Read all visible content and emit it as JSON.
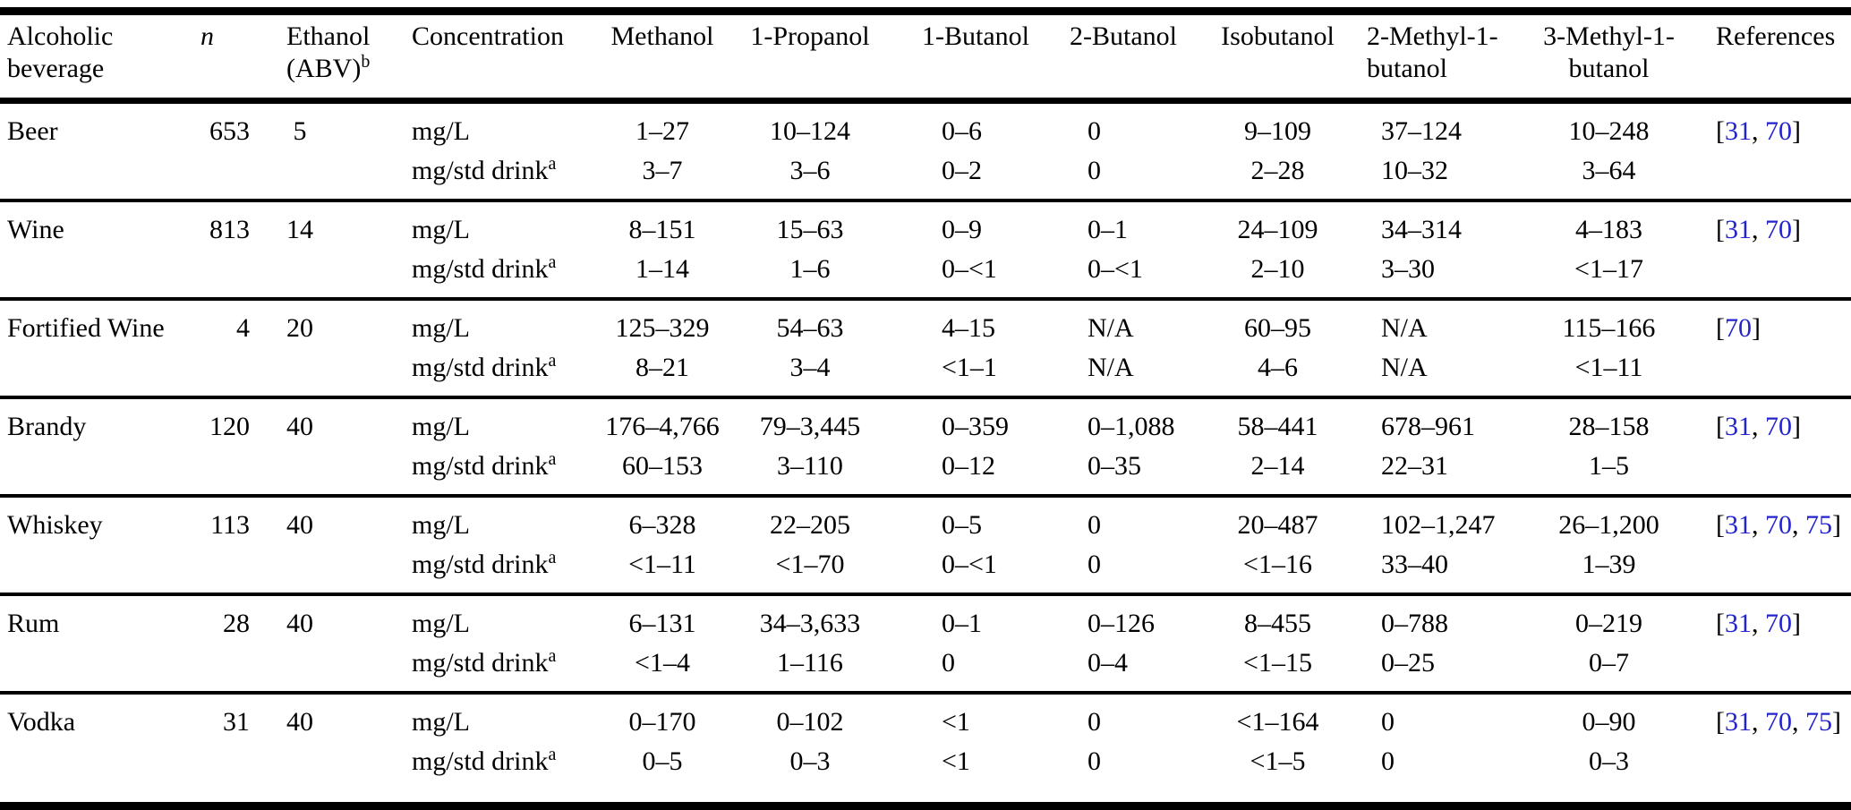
{
  "page": {
    "background_color": "#ffffff",
    "text_color": "#000000",
    "link_color": "#2424cc"
  },
  "table": {
    "columns": [
      {
        "id": "alcoholic-beverage",
        "lines": [
          "Alcoholic",
          "beverage"
        ]
      },
      {
        "id": "n",
        "lines": [
          "n"
        ],
        "italic": true
      },
      {
        "id": "ethanol-abv",
        "lines": [
          "Ethanol",
          "(ABV)"
        ],
        "sup": "b"
      },
      {
        "id": "concentration",
        "lines": [
          "Concentration"
        ]
      },
      {
        "id": "methanol",
        "lines": [
          "Methanol"
        ]
      },
      {
        "id": "1-propanol",
        "lines": [
          "1-Propanol"
        ]
      },
      {
        "id": "1-butanol",
        "lines": [
          "1-Butanol"
        ]
      },
      {
        "id": "2-butanol",
        "lines": [
          "2-Butanol"
        ]
      },
      {
        "id": "isobutanol",
        "lines": [
          "Isobutanol"
        ]
      },
      {
        "id": "2-methyl-1-butanol",
        "lines": [
          "2-Methyl-1-",
          "butanol"
        ]
      },
      {
        "id": "3-methyl-1-butanol",
        "lines": [
          "3-Methyl-1-",
          "butanol"
        ]
      },
      {
        "id": "references",
        "lines": [
          "References"
        ]
      }
    ],
    "sections": [
      {
        "beverage": "Beer",
        "n": "653",
        "abv": "5",
        "rows": [
          {
            "unit": "mg/L",
            "unit_sup": "",
            "values": [
              "1–27",
              "10–124",
              "0–6",
              "0",
              "9–109",
              "37–124",
              "10–248"
            ]
          },
          {
            "unit": "mg/std drink",
            "unit_sup": "a",
            "values": [
              "3–7",
              "3–6",
              "0–2",
              "0",
              "2–28",
              "10–32",
              "3–64"
            ]
          }
        ],
        "references": [
          "31",
          "70"
        ]
      },
      {
        "beverage": "Wine",
        "n": "813",
        "abv": "14",
        "rows": [
          {
            "unit": "mg/L",
            "unit_sup": "",
            "values": [
              "8–151",
              "15–63",
              "0–9",
              "0–1",
              "24–109",
              "34–314",
              "4–183"
            ]
          },
          {
            "unit": "mg/std drink",
            "unit_sup": "a",
            "values": [
              "1–14",
              "1–6",
              "0–<1",
              "0–<1",
              "2–10",
              "3–30",
              "<1–17"
            ]
          }
        ],
        "references": [
          "31",
          "70"
        ]
      },
      {
        "beverage": "Fortified Wine",
        "n": "4",
        "abv": "20",
        "rows": [
          {
            "unit": "mg/L",
            "unit_sup": "",
            "values": [
              "125–329",
              "54–63",
              "4–15",
              "N/A",
              "60–95",
              "N/A",
              "115–166"
            ]
          },
          {
            "unit": "mg/std drink",
            "unit_sup": "a",
            "values": [
              "8–21",
              "3–4",
              "<1–1",
              "N/A",
              "4–6",
              "N/A",
              "<1–11"
            ]
          }
        ],
        "references": [
          "70"
        ]
      },
      {
        "beverage": "Brandy",
        "n": "120",
        "abv": "40",
        "rows": [
          {
            "unit": "mg/L",
            "unit_sup": "",
            "values": [
              "176–4,766",
              "79–3,445",
              "0–359",
              "0–1,088",
              "58–441",
              "678–961",
              "28–158"
            ]
          },
          {
            "unit": "mg/std drink",
            "unit_sup": "a",
            "values": [
              "60–153",
              "3–110",
              "0–12",
              "0–35",
              "2–14",
              "22–31",
              "1–5"
            ]
          }
        ],
        "references": [
          "31",
          "70"
        ]
      },
      {
        "beverage": "Whiskey",
        "n": "113",
        "abv": "40",
        "rows": [
          {
            "unit": "mg/L",
            "unit_sup": "",
            "values": [
              "6–328",
              "22–205",
              "0–5",
              "0",
              "20–487",
              "102–1,247",
              "26–1,200"
            ]
          },
          {
            "unit": "mg/std drink",
            "unit_sup": "a",
            "values": [
              "<1–11",
              "<1–70",
              "0–<1",
              "0",
              "<1–16",
              "33–40",
              "1–39"
            ]
          }
        ],
        "references": [
          "31",
          "70",
          "75"
        ]
      },
      {
        "beverage": "Rum",
        "n": "28",
        "abv": "40",
        "rows": [
          {
            "unit": "mg/L",
            "unit_sup": "",
            "values": [
              "6–131",
              "34–3,633",
              "0–1",
              "0–126",
              "8–455",
              "0–788",
              "0–219"
            ]
          },
          {
            "unit": "mg/std drink",
            "unit_sup": "a",
            "values": [
              "<1–4",
              "1–116",
              "0",
              "0–4",
              "<1–15",
              "0–25",
              "0–7"
            ]
          }
        ],
        "references": [
          "31",
          "70"
        ]
      },
      {
        "beverage": "Vodka",
        "n": "31",
        "abv": "40",
        "rows": [
          {
            "unit": "mg/L",
            "unit_sup": "",
            "values": [
              "0–170",
              "0–102",
              "<1",
              "0",
              "<1–164",
              "0",
              "0–90"
            ]
          },
          {
            "unit": "mg/std drink",
            "unit_sup": "a",
            "values": [
              "0–5",
              "0–3",
              "<1",
              "0",
              "<1–5",
              "0",
              "0–3"
            ]
          }
        ],
        "references": [
          "31",
          "70",
          "75"
        ]
      }
    ],
    "citation_open_bracket": "[",
    "citation_separator": ", ",
    "citation_close_bracket": "]"
  }
}
